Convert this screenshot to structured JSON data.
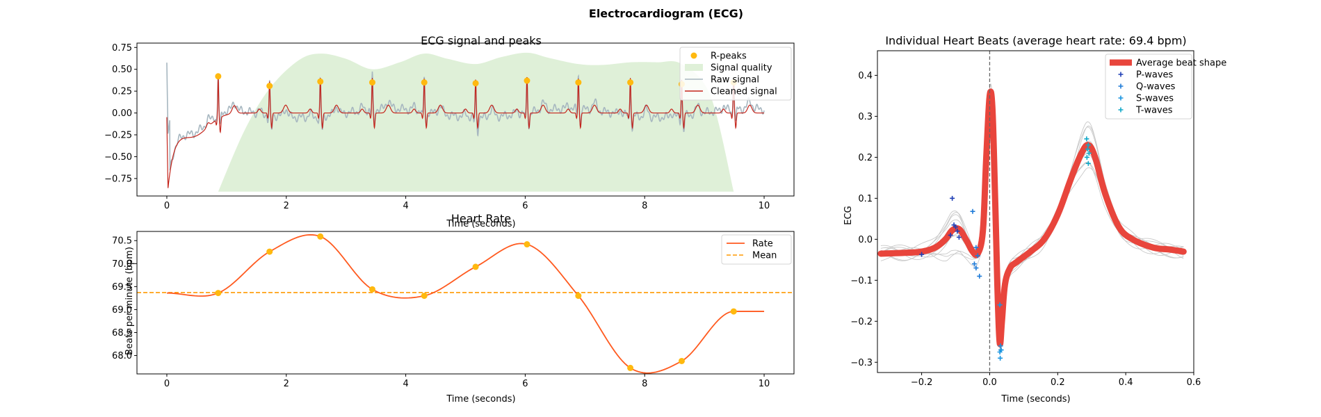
{
  "figure": {
    "title": "Electrocardiogram (ECG)"
  },
  "colors": {
    "rpeaks": "#FFB90F",
    "quality": "#DFF0D8",
    "raw": "#A7B7C0",
    "cleaned": "#C4241B",
    "rate": "#FF5A1F",
    "mean": "#FF9900",
    "avg_beat": "#E8453C",
    "p_waves": "#1F3FB5",
    "q_waves": "#1E7BD8",
    "s_waves": "#1A95E0",
    "t_waves": "#10A8C8",
    "beats": "#C8C8C8",
    "vline": "#666666"
  },
  "chart_data": [
    {
      "id": "ecg",
      "type": "line",
      "title": "ECG signal and peaks",
      "xlabel": "Time (seconds)",
      "ylabel": "",
      "xlim": [
        -0.5,
        10.5
      ],
      "ylim": [
        -0.95,
        0.8
      ],
      "xticks": [
        0,
        2,
        4,
        6,
        8,
        10
      ],
      "yticks": [
        -0.75,
        -0.5,
        -0.25,
        0.0,
        0.25,
        0.5,
        0.75
      ],
      "ytick_labels": [
        "−0.75",
        "−0.50",
        "−0.25",
        "0.00",
        "0.25",
        "0.50",
        "0.75"
      ],
      "legend": {
        "position": "top-right",
        "items": [
          "R-peaks",
          "Signal quality",
          "Raw signal",
          "Cleaned signal"
        ]
      },
      "r_peaks": {
        "name": "R-peaks",
        "x": [
          0.86,
          1.72,
          2.57,
          3.44,
          4.31,
          5.17,
          6.03,
          6.89,
          7.76,
          8.62,
          9.49
        ],
        "y": [
          0.42,
          0.31,
          0.36,
          0.35,
          0.35,
          0.34,
          0.37,
          0.35,
          0.35,
          0.33,
          0.35
        ]
      },
      "quality": {
        "name": "Signal quality",
        "x": [
          0.86,
          1.3,
          1.72,
          2.2,
          2.57,
          3.0,
          3.44,
          3.9,
          4.31,
          4.7,
          5.17,
          5.6,
          6.03,
          6.4,
          6.89,
          7.3,
          7.76,
          8.2,
          8.62,
          9.1,
          9.49
        ],
        "y": [
          -0.9,
          -0.2,
          0.28,
          0.6,
          0.68,
          0.62,
          0.5,
          0.58,
          0.68,
          0.62,
          0.56,
          0.64,
          0.69,
          0.63,
          0.56,
          0.55,
          0.58,
          0.58,
          0.56,
          0.2,
          -0.9
        ]
      }
    },
    {
      "id": "rate",
      "type": "line",
      "title": "Heart Rate",
      "xlabel": "Time (seconds)",
      "ylabel": "Beats per minute (bpm)",
      "xlim": [
        -0.5,
        10.5
      ],
      "ylim": [
        67.6,
        70.7
      ],
      "xticks": [
        0,
        2,
        4,
        6,
        8,
        10
      ],
      "yticks": [
        68.0,
        68.5,
        69.0,
        69.5,
        70.0,
        70.5
      ],
      "ytick_labels": [
        "68.0",
        "68.5",
        "69.0",
        "69.5",
        "70.0",
        "70.5"
      ],
      "legend": {
        "position": "top-right",
        "items": [
          "Rate",
          "Mean"
        ]
      },
      "series": [
        {
          "name": "Rate",
          "x": [
            0.86,
            1.72,
            2.57,
            3.44,
            4.31,
            5.17,
            6.03,
            6.89,
            7.76,
            8.62,
            9.49
          ],
          "y": [
            69.36,
            70.26,
            70.59,
            69.44,
            69.3,
            69.93,
            70.42,
            69.3,
            67.73,
            67.88,
            68.96
          ]
        }
      ],
      "mean": 69.37,
      "start_value": 69.36,
      "end_value": 68.96
    },
    {
      "id": "beats",
      "type": "line",
      "title": "Individual Heart Beats (average heart rate: 69.4 bpm)",
      "xlabel": "Time (seconds)",
      "ylabel": "ECG",
      "xlim": [
        -0.33,
        0.6
      ],
      "ylim": [
        -0.325,
        0.46
      ],
      "xticks": [
        -0.2,
        0.0,
        0.2,
        0.4,
        0.6
      ],
      "xtick_labels": [
        "−0.2",
        "0.0",
        "0.2",
        "0.4",
        "0.6"
      ],
      "yticks": [
        -0.3,
        -0.2,
        -0.1,
        0.0,
        0.1,
        0.2,
        0.3,
        0.4
      ],
      "ytick_labels": [
        "−0.3",
        "−0.2",
        "−0.1",
        "0.0",
        "0.1",
        "0.2",
        "0.3",
        "0.4"
      ],
      "legend": {
        "position": "top-right",
        "items": [
          "Average beat shape",
          "P-waves",
          "Q-waves",
          "S-waves",
          "T-waves"
        ]
      },
      "average_beat": {
        "name": "Average beat shape",
        "x": [
          -0.32,
          -0.25,
          -0.2,
          -0.16,
          -0.13,
          -0.11,
          -0.09,
          -0.07,
          -0.05,
          -0.035,
          -0.02,
          -0.01,
          0.0,
          0.008,
          0.016,
          0.024,
          0.03,
          0.036,
          0.045,
          0.06,
          0.08,
          0.12,
          0.16,
          0.2,
          0.24,
          0.27,
          0.29,
          0.31,
          0.34,
          0.38,
          0.42,
          0.48,
          0.53,
          0.57
        ],
        "y": [
          -0.035,
          -0.033,
          -0.03,
          -0.02,
          0.0,
          0.022,
          0.025,
          0.0,
          -0.03,
          -0.035,
          0.02,
          0.2,
          0.35,
          0.32,
          0.1,
          -0.15,
          -0.255,
          -0.2,
          -0.11,
          -0.07,
          -0.055,
          -0.03,
          0.0,
          0.06,
          0.15,
          0.21,
          0.23,
          0.2,
          0.11,
          0.03,
          0.0,
          -0.02,
          -0.025,
          -0.03
        ]
      },
      "p_waves": {
        "name": "P-waves",
        "x": [
          -0.2,
          -0.11,
          -0.105,
          -0.1,
          -0.095,
          -0.115,
          -0.09
        ],
        "y": [
          -0.037,
          0.1,
          0.035,
          0.03,
          0.02,
          0.01,
          0.005
        ]
      },
      "q_waves": {
        "name": "Q-waves",
        "x": [
          -0.05,
          -0.04,
          -0.035,
          -0.045,
          -0.04,
          -0.03
        ],
        "y": [
          0.068,
          -0.02,
          -0.04,
          -0.06,
          -0.07,
          -0.09
        ]
      },
      "s_waves": {
        "name": "S-waves",
        "x": [
          0.03,
          0.032,
          0.034,
          0.03,
          0.033,
          0.031
        ],
        "y": [
          -0.16,
          -0.26,
          -0.27,
          -0.275,
          -0.27,
          -0.29
        ]
      },
      "t_waves": {
        "name": "T-waves",
        "x": [
          0.285,
          0.29,
          0.288,
          0.292,
          0.286,
          0.29
        ],
        "y": [
          0.245,
          0.23,
          0.22,
          0.21,
          0.2,
          0.185
        ]
      }
    }
  ]
}
